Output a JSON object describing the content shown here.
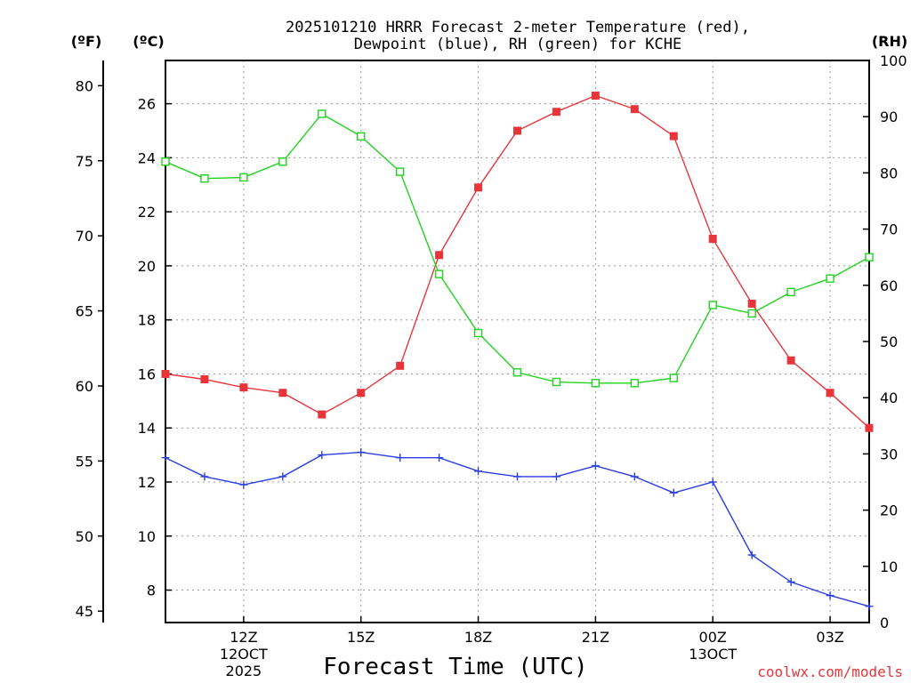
{
  "chart_data": {
    "type": "line",
    "title_line1": "2025101210 HRRR Forecast 2-meter Temperature (red),",
    "title_line2": "Dewpoint (blue), RH (green) for KCHE",
    "xlabel": "Forecast Time (UTC)",
    "y_left_f_label": "(ºF)",
    "y_left_c_label": "(ºC)",
    "y_right_label": "(RH)",
    "credit": "coolwx.com/models",
    "hours_from_10z": [
      0,
      1,
      2,
      3,
      4,
      5,
      6,
      7,
      8,
      9,
      10,
      11,
      12,
      13,
      14,
      15,
      16,
      17,
      18
    ],
    "x_ticks": [
      {
        "hour": 2,
        "lines": [
          "12Z",
          "12OCT",
          "2025"
        ]
      },
      {
        "hour": 5,
        "lines": [
          "15Z"
        ]
      },
      {
        "hour": 8,
        "lines": [
          "18Z"
        ]
      },
      {
        "hour": 11,
        "lines": [
          "21Z"
        ]
      },
      {
        "hour": 14,
        "lines": [
          "00Z",
          "13OCT"
        ]
      },
      {
        "hour": 17,
        "lines": [
          "03Z"
        ]
      }
    ],
    "y_celsius": {
      "min": 6.8,
      "max": 27.6,
      "ticks": [
        8,
        10,
        12,
        14,
        16,
        18,
        20,
        22,
        24,
        26
      ]
    },
    "y_fahrenheit": {
      "ticks": [
        45,
        50,
        55,
        60,
        65,
        70,
        75,
        80
      ]
    },
    "y_rh": {
      "min": 0,
      "max": 100,
      "ticks": [
        0,
        10,
        20,
        30,
        40,
        50,
        60,
        70,
        80,
        90,
        100
      ]
    },
    "series": [
      {
        "name": "Temperature (°C)",
        "color": "#e8353a",
        "marker": "filled-square",
        "axis": "celsius",
        "values": [
          16.0,
          15.8,
          15.5,
          15.3,
          14.5,
          15.3,
          16.3,
          20.4,
          22.9,
          25.0,
          25.7,
          26.3,
          25.8,
          24.8,
          21.0,
          18.6,
          16.5,
          15.3,
          14.0
        ]
      },
      {
        "name": "Dewpoint (°C)",
        "color": "#2a3fe0",
        "marker": "plus",
        "axis": "celsius",
        "values": [
          12.9,
          12.2,
          11.9,
          12.2,
          13.0,
          13.1,
          12.9,
          12.9,
          12.4,
          12.2,
          12.2,
          12.6,
          12.2,
          11.6,
          12.0,
          9.3,
          8.3,
          7.8,
          7.4
        ]
      },
      {
        "name": "RH (%)",
        "color": "#1fd41f",
        "marker": "open-square",
        "axis": "rh",
        "values": [
          82,
          79,
          79.2,
          82,
          90.5,
          86.5,
          80.2,
          62,
          51.5,
          44.5,
          42.8,
          42.6,
          42.6,
          43.5,
          56.5,
          55.0,
          58.8,
          61.2,
          65
        ]
      }
    ]
  }
}
